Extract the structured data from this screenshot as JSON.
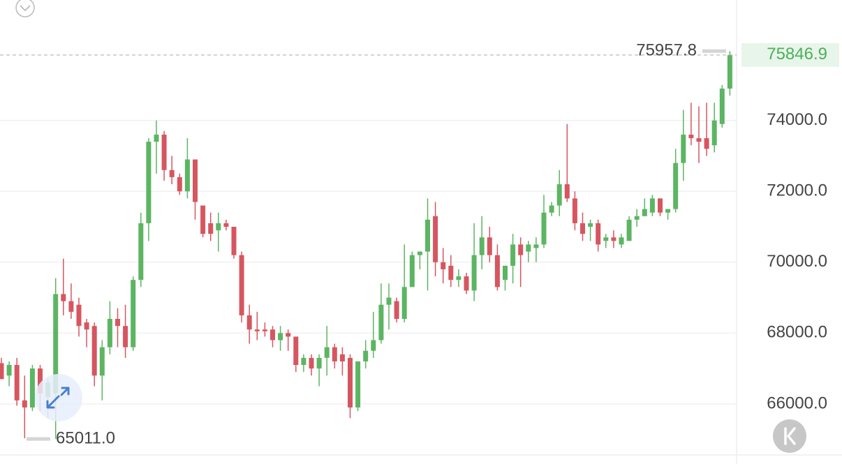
{
  "chart_data": {
    "type": "candlestick",
    "up_color": "#5cb562",
    "down_color": "#d65660",
    "ylim": [
      64600,
      77400
    ],
    "yticks": [
      {
        "value": 66000,
        "label": "66000.0"
      },
      {
        "value": 68000,
        "label": "68000.0"
      },
      {
        "value": 70000,
        "label": "70000.0"
      },
      {
        "value": 72000,
        "label": "72000.0"
      },
      {
        "value": 74000,
        "label": "74000.0"
      }
    ],
    "grid": true,
    "last_price": 75846.9,
    "high_marker": 75957.8,
    "low_marker": {
      "value": 65011,
      "label": "65011.0"
    },
    "open": [
      67150,
      66800,
      67100,
      66100,
      65900,
      67000,
      66200,
      66300,
      69100,
      68900,
      68800,
      68300,
      68200,
      66800,
      67600,
      68400,
      68200,
      67600,
      69500,
      71100,
      73400,
      73600,
      72600,
      72400,
      72000,
      72900,
      71600,
      71100,
      70900,
      71100,
      71000,
      70200,
      68500,
      68100,
      68100,
      68100,
      67800,
      68000,
      67900,
      67100,
      67300,
      67000,
      67300,
      67600,
      67400,
      67300,
      65900,
      67200,
      67500,
      67800,
      68800,
      68900,
      68400,
      69300,
      70200,
      70300,
      71300,
      70000,
      69900,
      69500,
      69600,
      69200,
      70200,
      70700,
      70200,
      69500,
      69900,
      70500,
      70300,
      70400,
      70500,
      71400,
      71600,
      72200,
      71800,
      71100,
      71000,
      71100,
      70600,
      70700,
      70500,
      70600,
      71200,
      71300,
      71400,
      71800,
      71400,
      71500,
      72800,
      73600,
      73500,
      73500,
      73300,
      73900,
      74900
    ],
    "high": [
      67300,
      67200,
      67300,
      66800,
      67100,
      67100,
      66700,
      69550,
      70100,
      69400,
      69000,
      68400,
      68300,
      67800,
      68900,
      68700,
      68800,
      69600,
      71400,
      73500,
      74000,
      73700,
      73000,
      72500,
      73500,
      72900,
      71600,
      71400,
      71400,
      71200,
      71000,
      70300,
      68800,
      68600,
      68300,
      68200,
      68200,
      68100,
      67900,
      67400,
      67400,
      67400,
      68200,
      67700,
      67600,
      67400,
      67100,
      67800,
      68600,
      69400,
      69400,
      69000,
      70500,
      70300,
      70300,
      71800,
      71700,
      70400,
      70200,
      69800,
      69700,
      71100,
      71300,
      71000,
      70500,
      69900,
      70800,
      70700,
      70600,
      70700,
      71900,
      71700,
      72600,
      73900,
      72000,
      71400,
      71200,
      71200,
      70800,
      70900,
      70800,
      71300,
      71500,
      71800,
      71900,
      71800,
      71500,
      73200,
      74300,
      74500,
      74400,
      74500,
      74500,
      75000,
      75957.8
    ],
    "low": [
      66700,
      66500,
      65950,
      65030,
      65800,
      65800,
      65600,
      65011,
      68500,
      68400,
      67900,
      67600,
      66500,
      66100,
      67400,
      67600,
      67300,
      67500,
      69300,
      70600,
      72500,
      72300,
      72200,
      71900,
      71800,
      71200,
      70700,
      70600,
      70300,
      70900,
      70100,
      68300,
      67700,
      67800,
      67900,
      67600,
      67500,
      67500,
      66900,
      66900,
      66800,
      66500,
      66800,
      67000,
      66800,
      65600,
      65800,
      67000,
      67300,
      67700,
      68100,
      68300,
      68300,
      69300,
      69800,
      69200,
      69600,
      69400,
      69300,
      69300,
      69100,
      68900,
      69800,
      70000,
      69200,
      69200,
      69400,
      69300,
      70000,
      70000,
      70400,
      71300,
      71300,
      71700,
      70900,
      70600,
      70600,
      70300,
      70400,
      70400,
      70400,
      70600,
      71000,
      71300,
      71300,
      71300,
      71200,
      71400,
      72300,
      73300,
      72800,
      73000,
      73100,
      73800,
      74700
    ],
    "close": [
      66700,
      67100,
      66100,
      65900,
      67000,
      66300,
      66600,
      69100,
      68900,
      68600,
      68200,
      68100,
      66800,
      67600,
      68400,
      68200,
      67600,
      69500,
      71100,
      73400,
      73600,
      72600,
      72400,
      72000,
      72900,
      71700,
      70800,
      70800,
      71100,
      71000,
      70200,
      68500,
      68100,
      68050,
      68050,
      67800,
      68000,
      67900,
      67100,
      67300,
      67000,
      67300,
      67600,
      67200,
      67200,
      65900,
      67200,
      67500,
      67800,
      68800,
      69000,
      68400,
      69300,
      70200,
      70300,
      71200,
      70000,
      69800,
      69500,
      69600,
      69200,
      70200,
      70700,
      70200,
      69300,
      69900,
      70500,
      70200,
      70500,
      70500,
      71400,
      71600,
      72200,
      71800,
      71100,
      70800,
      71100,
      70500,
      70700,
      70600,
      70700,
      71200,
      71300,
      71500,
      71800,
      71400,
      71500,
      72800,
      73600,
      73500,
      73400,
      73200,
      74000,
      74900,
      75846.9
    ]
  }
}
